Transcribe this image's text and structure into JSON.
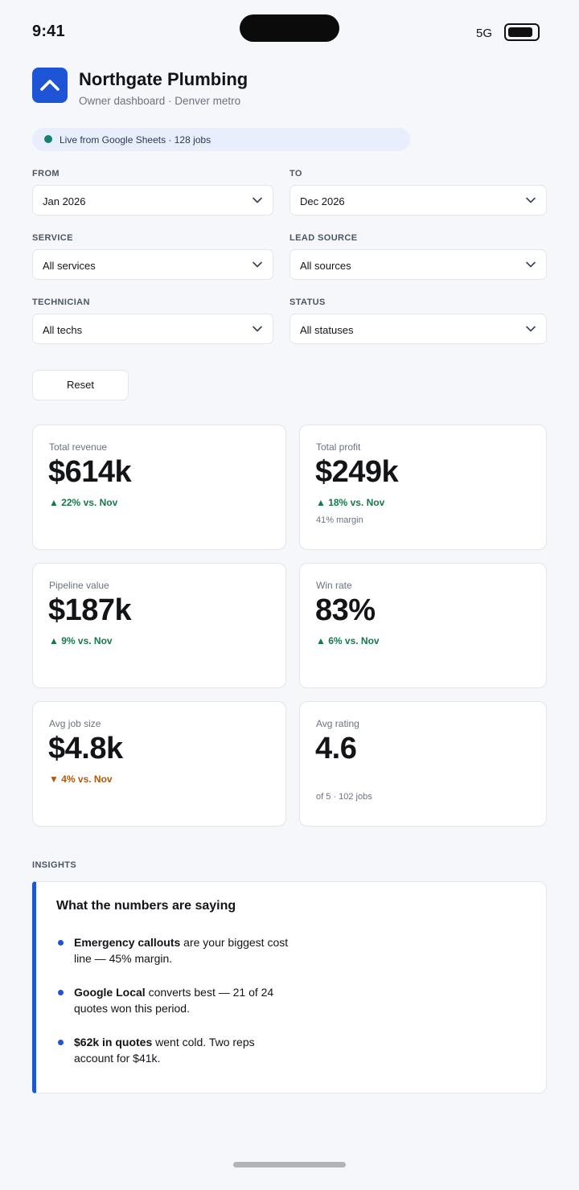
{
  "status_bar": {
    "time": "9:41",
    "network": "5G"
  },
  "app": {
    "title": "Northgate Plumbing",
    "subtitle": "Owner dashboard · Denver metro"
  },
  "live_banner": {
    "text": "Live from Google Sheets · 128 jobs"
  },
  "filters": {
    "from": {
      "label": "FROM",
      "value": "Jan 2026"
    },
    "to": {
      "label": "TO",
      "value": "Dec 2026"
    },
    "service": {
      "label": "SERVICE",
      "value": "All services"
    },
    "lead_source": {
      "label": "LEAD SOURCE",
      "value": "All sources"
    },
    "technician": {
      "label": "TECHNICIAN",
      "value": "All techs"
    },
    "status": {
      "label": "STATUS",
      "value": "All statuses"
    },
    "reset_label": "Reset"
  },
  "kpis": {
    "revenue": {
      "label": "Total revenue",
      "value": "$614k",
      "delta": "▲ 22% vs. Nov"
    },
    "profit": {
      "label": "Total profit",
      "value": "$249k",
      "delta": "▲ 18% vs. Nov",
      "note": "41% margin"
    },
    "pipeline": {
      "label": "Pipeline value",
      "value": "$187k",
      "delta": "▲ 9% vs. Nov"
    },
    "winrate": {
      "label": "Win rate",
      "value": "83%",
      "delta": "▲ 6% vs. Nov"
    },
    "avgjob": {
      "label": "Avg job size",
      "value": "$4.8k",
      "delta": "▼ 4% vs. Nov"
    },
    "rating": {
      "label": "Avg rating",
      "value": "4.6",
      "note": "of 5 · 102 jobs"
    }
  },
  "insights": {
    "section_label": "INSIGHTS",
    "title": "What the numbers are saying",
    "items": [
      {
        "bold": "Emergency callouts",
        "text": " are your biggest cost line — 45% margin."
      },
      {
        "bold": "Google Local",
        "text": " converts best — 21 of 24 quotes won this period."
      },
      {
        "bold": "$62k in quotes",
        "text": " went cold. Two reps account for $41k."
      }
    ]
  },
  "colors": {
    "accent": "#1e55d6",
    "up": "#137a4b",
    "down": "#b4560a",
    "live_dot": "#16846a"
  }
}
